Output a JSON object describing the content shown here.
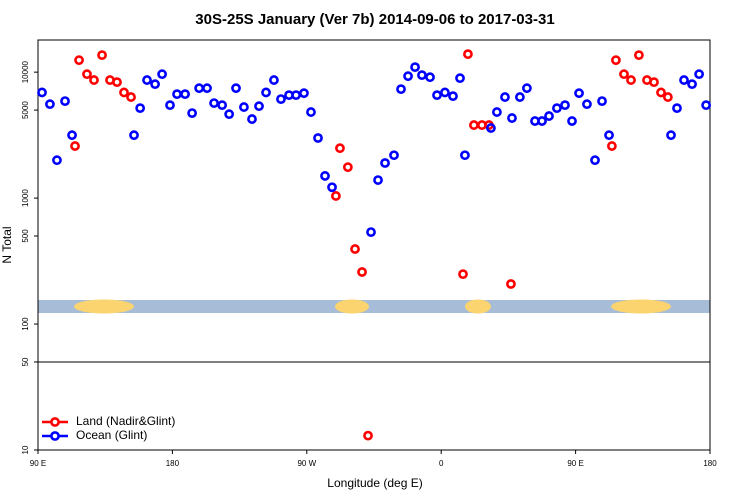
{
  "chart_data": {
    "type": "scatter",
    "title": "30S-25S January (Ver 7b)   2014-09-06 to 2017-03-31",
    "x_label": "Longitude (deg E)",
    "y_label": "N Total",
    "xlim": [
      90,
      540
    ],
    "xticks": [
      {
        "value": 90,
        "label": "90 E"
      },
      {
        "value": 180,
        "label": "180"
      },
      {
        "value": 270,
        "label": "90 W"
      },
      {
        "value": 360,
        "label": "0"
      },
      {
        "value": 450,
        "label": "90 E"
      },
      {
        "value": 540,
        "label": "180"
      }
    ],
    "ylim": [
      10,
      18000
    ],
    "y_log": true,
    "yticks": [
      10,
      50,
      100,
      500,
      1000,
      5000,
      10000
    ],
    "reference_line": 50,
    "legend_position": "bottom-left",
    "series": [
      {
        "name": "Land (Nadir&Glint)",
        "color": "#ff0000",
        "x": [
          114.8,
          117.5,
          122.8,
          127.5,
          132.9,
          138.2,
          142.9,
          147.6,
          152.3,
          289.5,
          292.2,
          297.5,
          302.3,
          307.0,
          311.0,
          374.6,
          377.9,
          381.9,
          387.3,
          392.0,
          406.7,
          474.3,
          477.0,
          482.4,
          487.1,
          492.4,
          497.8,
          502.5,
          507.2,
          511.8
        ],
        "values": [
          2590,
          12450,
          9640,
          8650,
          13650,
          8650,
          8330,
          6900,
          6340,
          1040,
          2490,
          1760,
          394,
          259,
          13,
          249,
          13900,
          3800,
          3800,
          3800,
          208,
          2590,
          12450,
          9640,
          8650,
          13650,
          8650,
          8330,
          6900,
          6340
        ]
      },
      {
        "name": "Ocean (Glint)",
        "color": "#0000ff",
        "x": [
          92.7,
          98.0,
          102.7,
          108.1,
          112.8,
          154.3,
          158.4,
          163.0,
          168.4,
          173.1,
          178.4,
          183.1,
          188.5,
          193.2,
          197.9,
          203.2,
          207.9,
          213.3,
          218.0,
          222.6,
          227.9,
          233.3,
          238.0,
          242.7,
          248.0,
          252.7,
          258.1,
          262.8,
          268.1,
          272.8,
          277.5,
          282.2,
          286.9,
          313.0,
          317.7,
          322.4,
          328.4,
          333.1,
          337.8,
          342.5,
          347.1,
          352.5,
          357.2,
          362.5,
          367.9,
          372.6,
          375.9,
          393.3,
          397.3,
          402.7,
          407.4,
          412.7,
          417.4,
          422.8,
          427.5,
          432.2,
          437.5,
          442.9,
          447.6,
          452.3,
          457.6,
          463.0,
          467.7,
          472.4,
          513.9,
          517.9,
          522.6,
          528.0,
          532.7,
          537.4
        ],
        "values": [
          6900,
          5570,
          2000,
          5890,
          3160,
          3160,
          5180,
          8650,
          8030,
          9640,
          5470,
          6690,
          6690,
          4730,
          7460,
          7460,
          5680,
          5470,
          4640,
          7460,
          5280,
          4240,
          5370,
          6900,
          8650,
          6110,
          6570,
          6570,
          6810,
          4820,
          3000,
          1500,
          1220,
          537,
          1390,
          1900,
          2190,
          7330,
          9290,
          10960,
          9470,
          9120,
          6570,
          6900,
          6450,
          8960,
          2190,
          3600,
          4820,
          6340,
          4320,
          6340,
          7460,
          4090,
          4090,
          4480,
          5180,
          5470,
          4090,
          6810,
          5570,
          2000,
          5890,
          3160,
          3160,
          5180,
          8650,
          8030,
          9640,
          5470
        ]
      }
    ]
  }
}
